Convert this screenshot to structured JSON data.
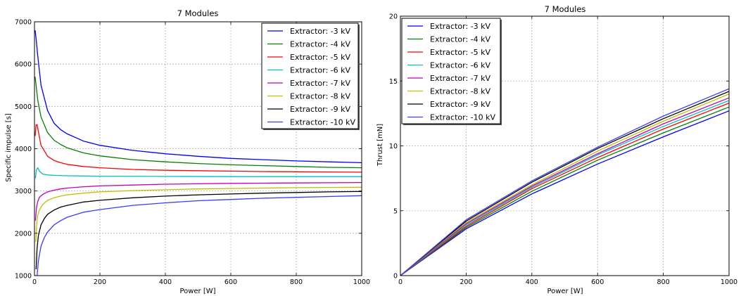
{
  "chart_data": [
    {
      "type": "line",
      "title": "7 Modules",
      "xlabel": "Power [W]",
      "ylabel": "Specific impulse [s]",
      "xlim": [
        0,
        1000
      ],
      "ylim": [
        1000,
        7000
      ],
      "xticks": [
        0,
        200,
        400,
        600,
        800,
        1000
      ],
      "yticks": [
        1000,
        2000,
        3000,
        4000,
        5000,
        6000,
        7000
      ],
      "grid": true,
      "legend_position": "top-right",
      "series": [
        {
          "name": "Extractor: -3 kV",
          "color": "#0000ff",
          "x": [
            2,
            5,
            10,
            20,
            40,
            60,
            80,
            100,
            150,
            200,
            300,
            400,
            500,
            600,
            700,
            800,
            900,
            1000
          ],
          "y": [
            6800,
            6600,
            6200,
            5500,
            4900,
            4600,
            4450,
            4350,
            4180,
            4080,
            3960,
            3880,
            3820,
            3770,
            3740,
            3710,
            3690,
            3670
          ]
        },
        {
          "name": "Extractor: -4 kV",
          "color": "#008000",
          "x": [
            2,
            5,
            10,
            20,
            40,
            60,
            80,
            100,
            150,
            200,
            300,
            400,
            500,
            600,
            700,
            800,
            900,
            1000
          ],
          "y": [
            5700,
            5500,
            5150,
            4750,
            4380,
            4200,
            4100,
            4020,
            3900,
            3830,
            3740,
            3690,
            3650,
            3620,
            3600,
            3580,
            3560,
            3550
          ]
        },
        {
          "name": "Extractor: -5 kV",
          "color": "#ff0000",
          "x": [
            2,
            5,
            8,
            12,
            20,
            40,
            60,
            80,
            100,
            150,
            200,
            300,
            400,
            500,
            600,
            700,
            800,
            900,
            1000
          ],
          "y": [
            4300,
            4560,
            4570,
            4400,
            4080,
            3820,
            3720,
            3670,
            3630,
            3580,
            3550,
            3510,
            3490,
            3480,
            3470,
            3460,
            3455,
            3450,
            3445
          ]
        },
        {
          "name": "Extractor: -6 kV",
          "color": "#00bfbf",
          "x": [
            3,
            6,
            10,
            15,
            25,
            40,
            60,
            100,
            200,
            400,
            600,
            800,
            1000
          ],
          "y": [
            3300,
            3500,
            3550,
            3470,
            3400,
            3380,
            3370,
            3360,
            3350,
            3345,
            3340,
            3340,
            3340
          ]
        },
        {
          "name": "Extractor: -7 kV",
          "color": "#bf00bf",
          "x": [
            3,
            6,
            10,
            15,
            25,
            40,
            60,
            80,
            100,
            150,
            200,
            300,
            400,
            500,
            600,
            700,
            800,
            900,
            1000
          ],
          "y": [
            2300,
            2600,
            2750,
            2850,
            2920,
            2980,
            3020,
            3050,
            3070,
            3100,
            3120,
            3140,
            3160,
            3170,
            3180,
            3185,
            3190,
            3195,
            3200
          ]
        },
        {
          "name": "Extractor: -8 kV",
          "color": "#bfbf00",
          "x": [
            4,
            7,
            10,
            15,
            25,
            40,
            60,
            80,
            100,
            150,
            200,
            300,
            400,
            500,
            600,
            700,
            800,
            900,
            1000
          ],
          "y": [
            1800,
            2250,
            2420,
            2550,
            2680,
            2780,
            2840,
            2880,
            2910,
            2950,
            2980,
            3010,
            3030,
            3050,
            3060,
            3070,
            3080,
            3085,
            3090
          ]
        },
        {
          "name": "Extractor: -9 kV",
          "color": "#000000",
          "x": [
            5,
            8,
            12,
            20,
            30,
            40,
            60,
            80,
            100,
            150,
            200,
            300,
            400,
            500,
            600,
            700,
            800,
            900,
            1000
          ],
          "y": [
            1150,
            1650,
            1950,
            2200,
            2350,
            2450,
            2550,
            2620,
            2660,
            2740,
            2780,
            2840,
            2880,
            2910,
            2930,
            2950,
            2965,
            2980,
            2990
          ]
        },
        {
          "name": "Extractor: -10 kV",
          "color": "#3a3aff",
          "x": [
            8,
            12,
            20,
            30,
            40,
            60,
            80,
            100,
            150,
            200,
            300,
            400,
            500,
            600,
            700,
            800,
            900,
            1000
          ],
          "y": [
            1000,
            1350,
            1700,
            1900,
            2030,
            2200,
            2300,
            2380,
            2500,
            2560,
            2660,
            2720,
            2770,
            2800,
            2830,
            2850,
            2870,
            2890
          ]
        }
      ]
    },
    {
      "type": "line",
      "title": "7 Modules",
      "xlabel": "Power [W]",
      "ylabel": "Thrust [mN]",
      "xlim": [
        0,
        1000
      ],
      "ylim": [
        0,
        20
      ],
      "xticks": [
        0,
        200,
        400,
        600,
        800,
        1000
      ],
      "yticks": [
        0,
        5,
        10,
        15,
        20
      ],
      "grid": true,
      "legend_position": "top-left",
      "series": [
        {
          "name": "Extractor: -3 kV",
          "color": "#0000ff",
          "x": [
            0,
            200,
            400,
            600,
            800,
            1000
          ],
          "y": [
            0,
            3.6,
            6.3,
            8.6,
            10.7,
            12.7
          ]
        },
        {
          "name": "Extractor: -4 kV",
          "color": "#008000",
          "x": [
            0,
            200,
            400,
            600,
            800,
            1000
          ],
          "y": [
            0,
            3.7,
            6.5,
            8.9,
            11.0,
            13.0
          ]
        },
        {
          "name": "Extractor: -5 kV",
          "color": "#ff0000",
          "x": [
            0,
            200,
            400,
            600,
            800,
            1000
          ],
          "y": [
            0,
            3.8,
            6.7,
            9.1,
            11.3,
            13.3
          ]
        },
        {
          "name": "Extractor: -6 kV",
          "color": "#00bfbf",
          "x": [
            0,
            200,
            400,
            600,
            800,
            1000
          ],
          "y": [
            0,
            3.9,
            6.8,
            9.3,
            11.5,
            13.5
          ]
        },
        {
          "name": "Extractor: -7 kV",
          "color": "#bf00bf",
          "x": [
            0,
            200,
            400,
            600,
            800,
            1000
          ],
          "y": [
            0,
            4.0,
            6.9,
            9.4,
            11.7,
            13.7
          ]
        },
        {
          "name": "Extractor: -8 kV",
          "color": "#bfbf00",
          "x": [
            0,
            200,
            400,
            600,
            800,
            1000
          ],
          "y": [
            0,
            4.1,
            7.0,
            9.6,
            11.9,
            14.0
          ]
        },
        {
          "name": "Extractor: -9 kV",
          "color": "#000000",
          "x": [
            0,
            200,
            400,
            600,
            800,
            1000
          ],
          "y": [
            0,
            4.2,
            7.2,
            9.8,
            12.1,
            14.2
          ]
        },
        {
          "name": "Extractor: -10 kV",
          "color": "#3a3aff",
          "x": [
            0,
            200,
            400,
            600,
            800,
            1000
          ],
          "y": [
            0,
            4.3,
            7.3,
            9.9,
            12.3,
            14.4
          ]
        }
      ]
    }
  ]
}
